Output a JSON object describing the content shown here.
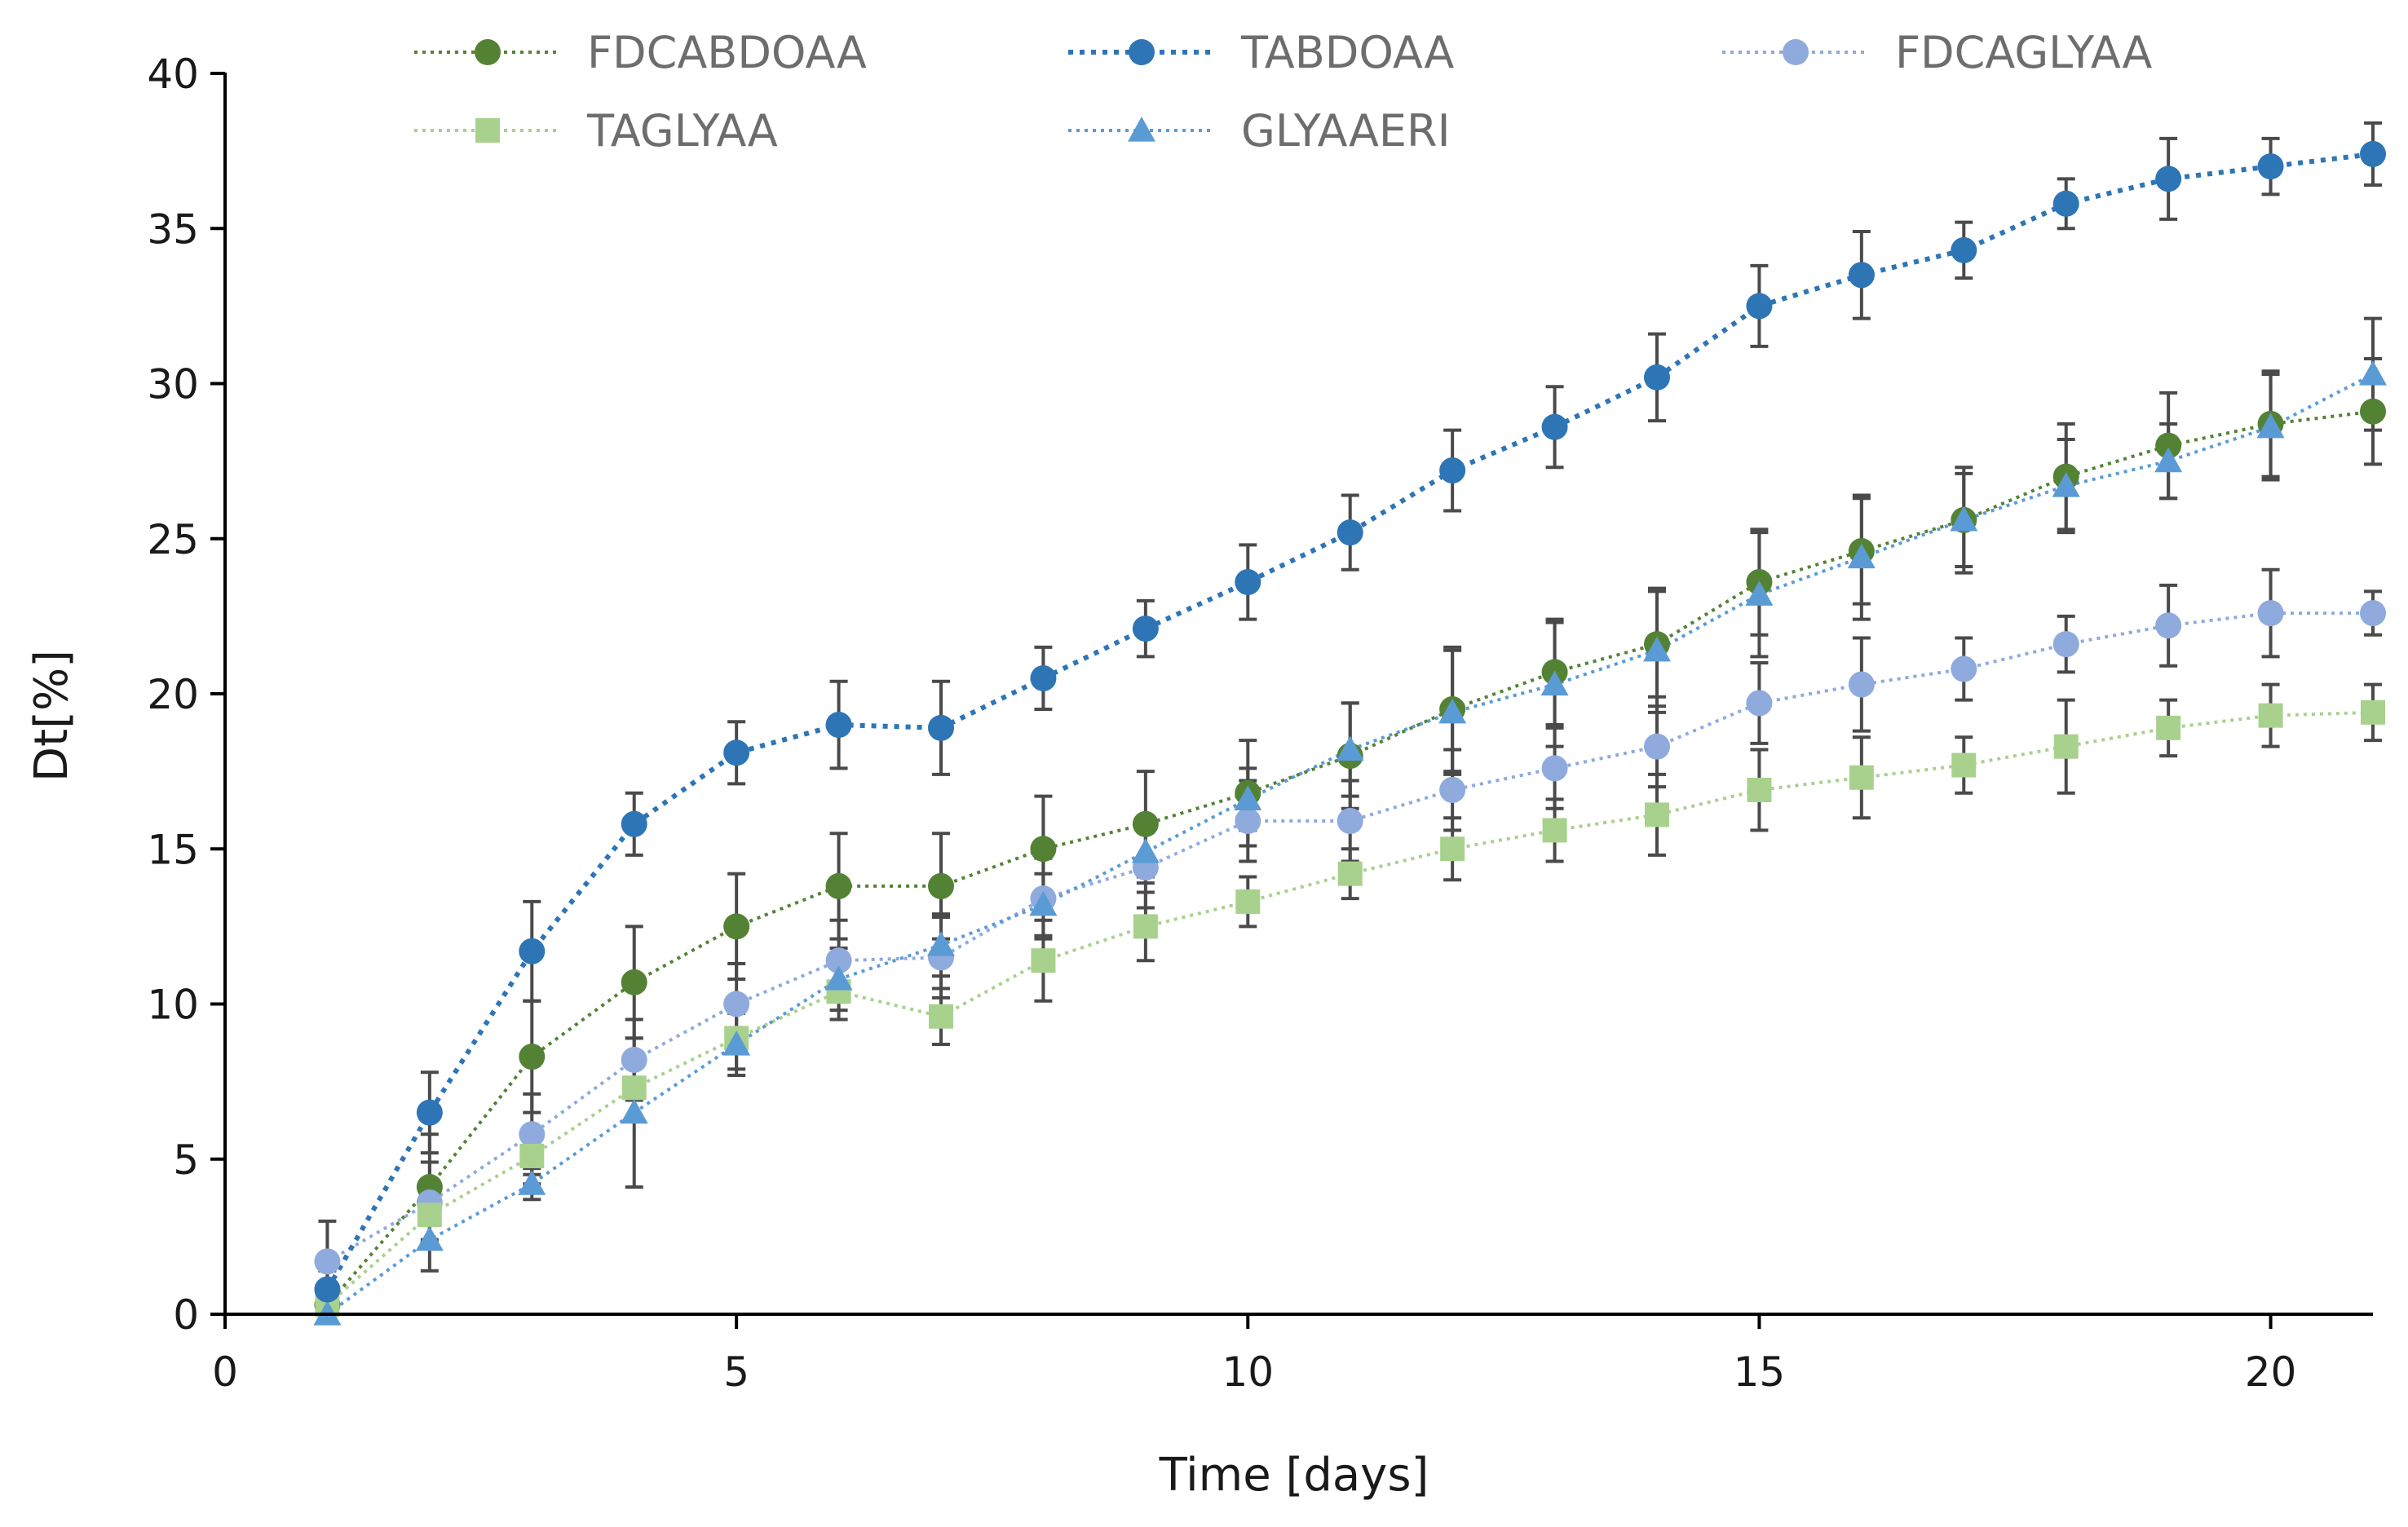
{
  "chart_data": {
    "type": "line",
    "title": "",
    "xlabel": "Time [days]",
    "ylabel": "Dt[%]",
    "xlim": [
      0,
      21
    ],
    "ylim": [
      0,
      40
    ],
    "xticks": [
      0,
      5,
      10,
      15,
      20
    ],
    "yticks": [
      0,
      5,
      10,
      15,
      20,
      25,
      30,
      35,
      40
    ],
    "grid": false,
    "legend_position": "top",
    "x": [
      1,
      2,
      3,
      4,
      5,
      6,
      7,
      8,
      9,
      10,
      11,
      12,
      13,
      14,
      15,
      16,
      17,
      18,
      19,
      20,
      21
    ],
    "series": [
      {
        "name": "FDCABDOAA",
        "color": "#548235",
        "marker": "circle",
        "values": [
          0.3,
          4.1,
          8.3,
          10.7,
          12.5,
          13.8,
          13.8,
          15.0,
          15.8,
          16.8,
          18.0,
          19.5,
          20.7,
          21.6,
          23.6,
          24.6,
          25.6,
          27.0,
          28.0,
          28.7,
          29.1
        ],
        "errors": [
          0.5,
          1.7,
          1.8,
          1.8,
          1.7,
          1.7,
          1.7,
          1.7,
          1.7,
          1.7,
          1.7,
          2.0,
          1.7,
          1.7,
          1.7,
          1.7,
          1.7,
          1.7,
          1.7,
          1.7,
          1.7
        ]
      },
      {
        "name": "TABDOAA",
        "color": "#2e75b6",
        "marker": "circle",
        "values": [
          0.8,
          6.5,
          11.7,
          15.8,
          18.1,
          19.0,
          18.9,
          20.5,
          22.1,
          23.6,
          25.2,
          27.2,
          28.6,
          30.2,
          32.5,
          33.5,
          34.3,
          35.8,
          36.6,
          37.0,
          37.4
        ],
        "errors": [
          0.6,
          1.3,
          1.6,
          1.0,
          1.0,
          1.4,
          1.5,
          1.0,
          0.9,
          1.2,
          1.2,
          1.3,
          1.3,
          1.4,
          1.3,
          1.4,
          0.9,
          0.8,
          1.3,
          0.9,
          1.0
        ]
      },
      {
        "name": "FDCAGLYAA",
        "color": "#8faadc",
        "marker": "circle",
        "values": [
          1.7,
          3.6,
          5.8,
          8.2,
          10.0,
          11.4,
          11.5,
          13.4,
          14.4,
          15.9,
          15.9,
          16.9,
          17.6,
          18.3,
          19.7,
          20.3,
          20.8,
          21.6,
          22.2,
          22.6,
          22.6
        ],
        "errors": [
          1.3,
          1.3,
          1.3,
          1.3,
          1.3,
          1.3,
          1.3,
          1.3,
          1.3,
          1.3,
          1.3,
          1.3,
          1.3,
          1.3,
          1.3,
          1.5,
          1.0,
          0.9,
          1.3,
          1.4,
          0.7
        ]
      },
      {
        "name": "TAGLYAA",
        "color": "#a9d18e",
        "marker": "square",
        "values": [
          0.3,
          3.2,
          5.1,
          7.3,
          8.9,
          10.4,
          9.6,
          11.4,
          12.5,
          13.3,
          14.2,
          15.0,
          15.6,
          16.1,
          16.9,
          17.3,
          17.7,
          18.3,
          18.9,
          19.3,
          19.4
        ],
        "errors": [
          0.4,
          0.9,
          0.9,
          1.0,
          1.0,
          0.9,
          0.9,
          1.3,
          1.1,
          0.8,
          0.8,
          1.0,
          1.0,
          1.3,
          1.3,
          1.3,
          0.9,
          1.5,
          0.9,
          1.0,
          0.9
        ]
      },
      {
        "name": "GLYAAERI",
        "color": "#5b9bd5",
        "marker": "triangle",
        "values": [
          0.0,
          2.4,
          4.2,
          6.5,
          8.7,
          10.8,
          11.9,
          13.2,
          14.9,
          16.6,
          18.2,
          19.4,
          20.3,
          21.4,
          23.2,
          24.4,
          25.6,
          26.7,
          27.5,
          28.6,
          30.3
        ],
        "errors": [
          0.3,
          1.0,
          0.5,
          2.4,
          1.0,
          1.0,
          1.0,
          1.0,
          1.0,
          1.0,
          1.5,
          2.0,
          2.0,
          2.0,
          2.0,
          2.0,
          1.5,
          1.5,
          1.2,
          1.7,
          1.8
        ]
      }
    ]
  }
}
